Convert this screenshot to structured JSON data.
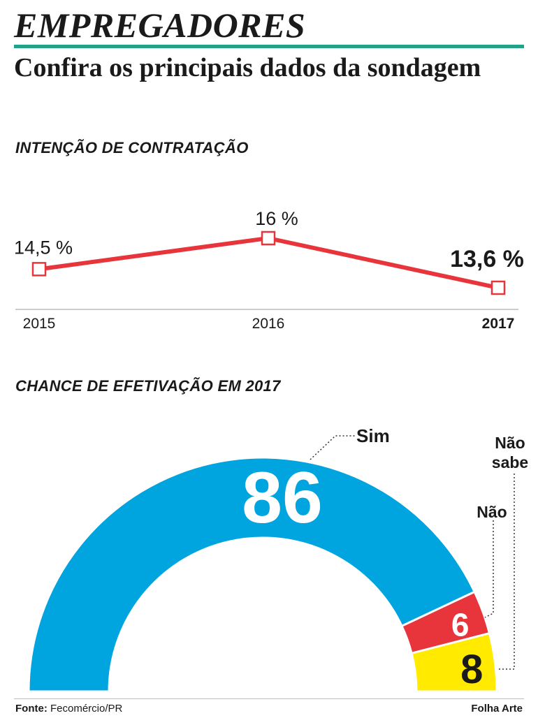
{
  "kicker": "EMPREGADORES",
  "headline": "Confira os principais dados da sondagem",
  "footer": {
    "source_label": "Fonte:",
    "source_value": "Fecomércio/PR",
    "credit": "Folha Arte"
  },
  "colors": {
    "accent_rule": "#1fa286",
    "line": "#e8343b",
    "sim": "#00a4de",
    "nao": "#e8343b",
    "nao_sabe": "#ffea00"
  },
  "chart_data": [
    {
      "type": "line",
      "title": "INTENÇÃO DE CONTRATAÇÃO",
      "x": [
        "2015",
        "2016",
        "2017"
      ],
      "values": [
        14.5,
        16,
        13.6
      ],
      "labels": [
        "14,5 %",
        "16 %",
        "13,6 %"
      ],
      "highlight": "2017",
      "ylim": [
        13,
        16.5
      ],
      "grid": false
    },
    {
      "type": "pie",
      "title": "CHANCE DE EFETIVAÇÃO EM 2017",
      "style": "semicircle-gauge",
      "categories": [
        "Sim",
        "Não",
        "Não sabe"
      ],
      "values": [
        86,
        6,
        8
      ],
      "labels": [
        "86",
        "6",
        "8"
      ]
    }
  ]
}
